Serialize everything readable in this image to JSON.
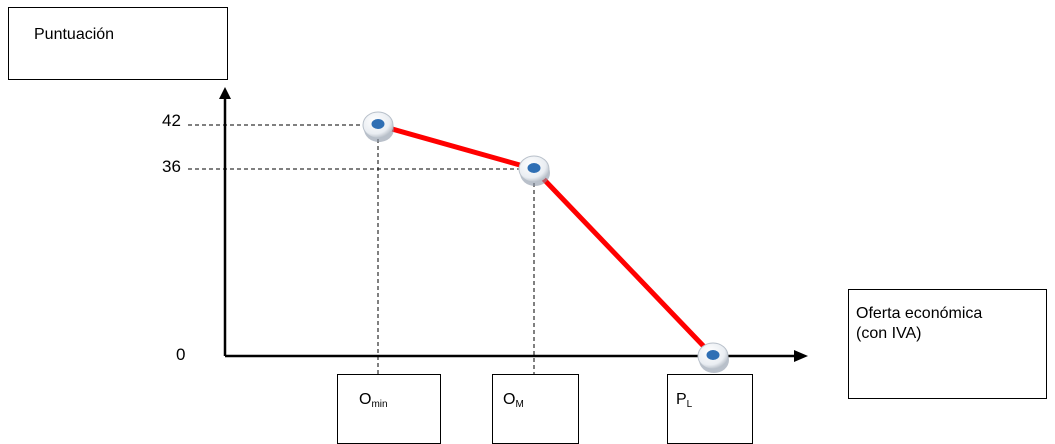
{
  "chart_data": {
    "type": "line",
    "ylabel": "Puntuación",
    "xlabel_lines": [
      "Oferta económica",
      "(con IVA)"
    ],
    "y_ticks": [
      "42",
      "36",
      "0"
    ],
    "x_ticks": [
      {
        "main": "O",
        "sub": "min"
      },
      {
        "main": "O",
        "sub": "M"
      },
      {
        "main": "P",
        "sub": "L"
      }
    ],
    "categories": [
      "Omin",
      "OM",
      "PL"
    ],
    "series": [
      {
        "values": [
          42,
          36,
          0
        ]
      }
    ],
    "ylim": [
      0,
      42
    ],
    "line_color": "#ff0000",
    "marker_color": "#2f6fb4",
    "axis_color": "#000000"
  }
}
